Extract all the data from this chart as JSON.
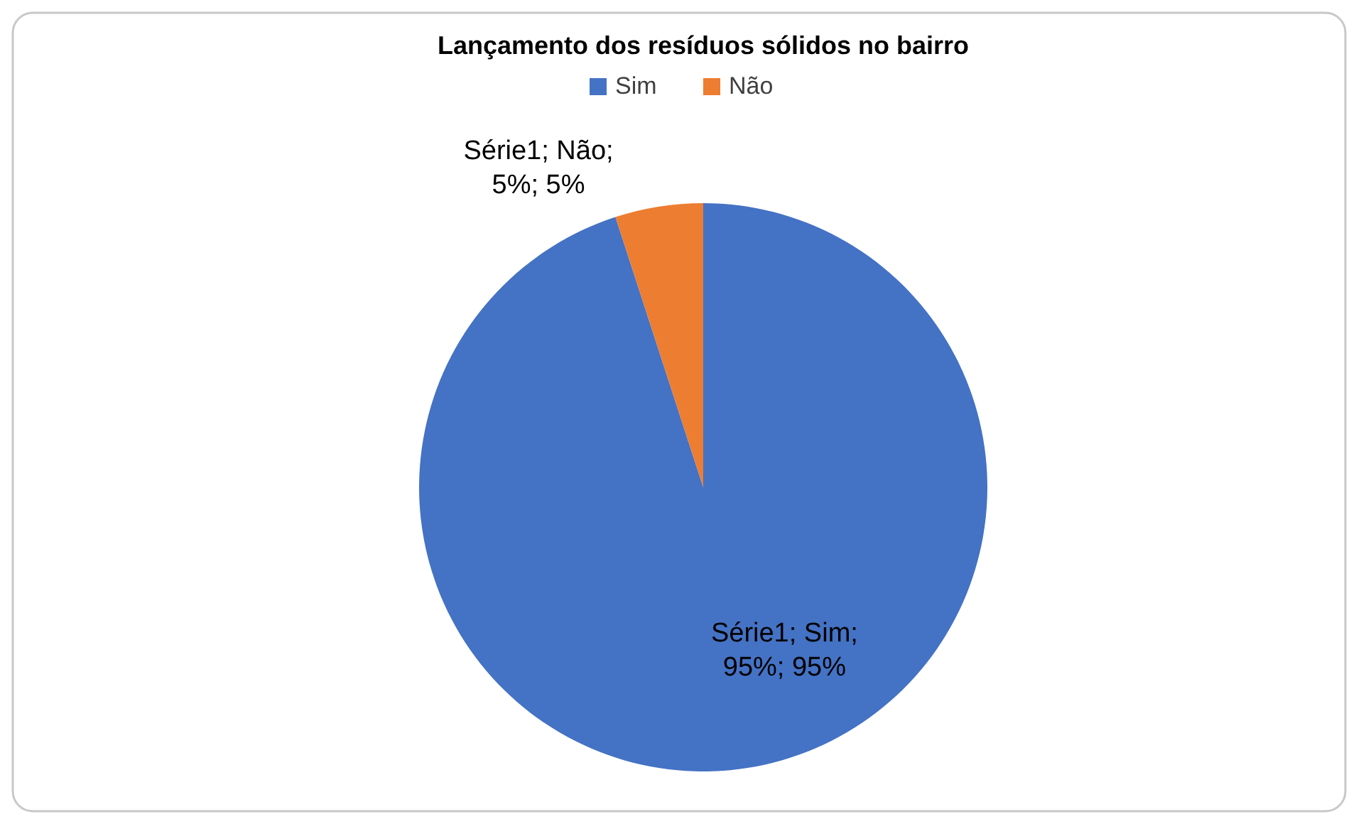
{
  "chart_data": {
    "type": "pie",
    "title": "Lançamento dos resíduos sólidos no bairro",
    "categories": [
      "Sim",
      "Não"
    ],
    "values": [
      95,
      5
    ],
    "colors": [
      "#4472c4",
      "#ed7d31"
    ],
    "value_labels": [
      "Série1; Sim; 95%; 95%",
      "Série1; Não; 5%; 5%"
    ],
    "legend": "top"
  }
}
